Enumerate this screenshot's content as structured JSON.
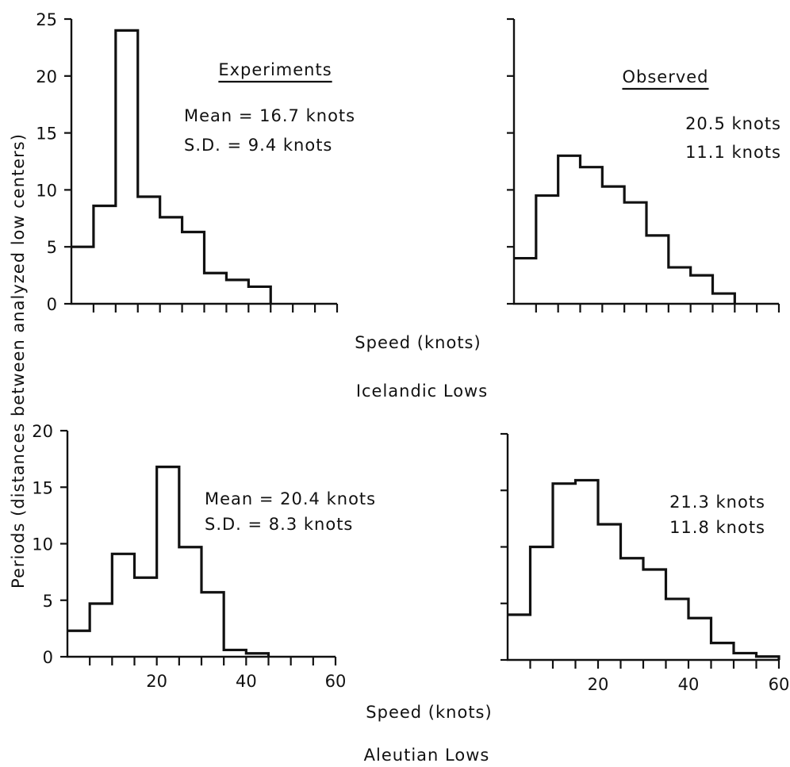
{
  "figure": {
    "ylabel": "Periods (distances between analyzed low centers)",
    "xlabel": "Speed (knots)",
    "caption_top": "Icelandic Lows",
    "caption_bottom": "Aleutian Lows"
  },
  "chart_data": [
    {
      "type": "histogram",
      "row": "Icelandic Lows",
      "panel": "Experiments",
      "heading": "Experiments",
      "stats": [
        "Mean = 16.7 knots",
        "S.D. = 9.4 knots"
      ],
      "bin_width": 5,
      "bin_edges": [
        0,
        5,
        10,
        15,
        20,
        25,
        30,
        35,
        40,
        45,
        50,
        55,
        60
      ],
      "values": [
        5,
        8.6,
        24,
        9.4,
        7.6,
        6.3,
        2.7,
        2.1,
        1.5,
        0,
        0,
        0
      ],
      "xlim": [
        0,
        60
      ],
      "ylim": [
        0,
        25
      ],
      "yticks": [
        0,
        5,
        10,
        15,
        20,
        25
      ],
      "xticks_labeled": false
    },
    {
      "type": "histogram",
      "row": "Icelandic Lows",
      "panel": "Observed",
      "heading": "Observed",
      "stats": [
        "20.5 knots",
        "11.1 knots"
      ],
      "bin_width": 5,
      "bin_edges": [
        0,
        5,
        10,
        15,
        20,
        25,
        30,
        35,
        40,
        45,
        50,
        55,
        60
      ],
      "values": [
        4,
        9.5,
        13,
        12,
        10.3,
        8.9,
        6,
        3.2,
        2.5,
        0.9,
        0,
        0
      ],
      "xlim": [
        0,
        60
      ],
      "ylim": [
        0,
        25
      ],
      "yticks": [
        0,
        5,
        10,
        15,
        20,
        25
      ],
      "xticks_labeled": false
    },
    {
      "type": "histogram",
      "row": "Aleutian Lows",
      "panel": "Experiments",
      "heading": "",
      "stats": [
        "Mean = 20.4 knots",
        "S.D. = 8.3 knots"
      ],
      "bin_width": 5,
      "bin_edges": [
        0,
        5,
        10,
        15,
        20,
        25,
        30,
        35,
        40,
        45,
        50,
        55,
        60
      ],
      "values": [
        2.3,
        4.7,
        9.1,
        7,
        16.8,
        9.7,
        5.7,
        0.6,
        0.3,
        0,
        0,
        0
      ],
      "xlim": [
        0,
        60
      ],
      "ylim": [
        0,
        20
      ],
      "yticks": [
        0,
        5,
        10,
        15,
        20
      ],
      "xtick_labels": [
        "20",
        "40",
        "60"
      ]
    },
    {
      "type": "histogram",
      "row": "Aleutian Lows",
      "panel": "Observed",
      "heading": "",
      "stats": [
        "21.3 knots",
        "11.8 knots"
      ],
      "bin_width": 5,
      "bin_edges": [
        0,
        5,
        10,
        15,
        20,
        25,
        30,
        35,
        40,
        45,
        50,
        55,
        60
      ],
      "values": [
        4,
        10,
        15.6,
        15.9,
        12,
        9,
        8,
        5.4,
        3.7,
        1.5,
        0.6,
        0.3
      ],
      "xlim": [
        0,
        60
      ],
      "ylim": [
        0,
        20
      ],
      "yticks": [
        0,
        5,
        10,
        15,
        20
      ],
      "xtick_labels": [
        "20",
        "40",
        "60"
      ]
    }
  ]
}
